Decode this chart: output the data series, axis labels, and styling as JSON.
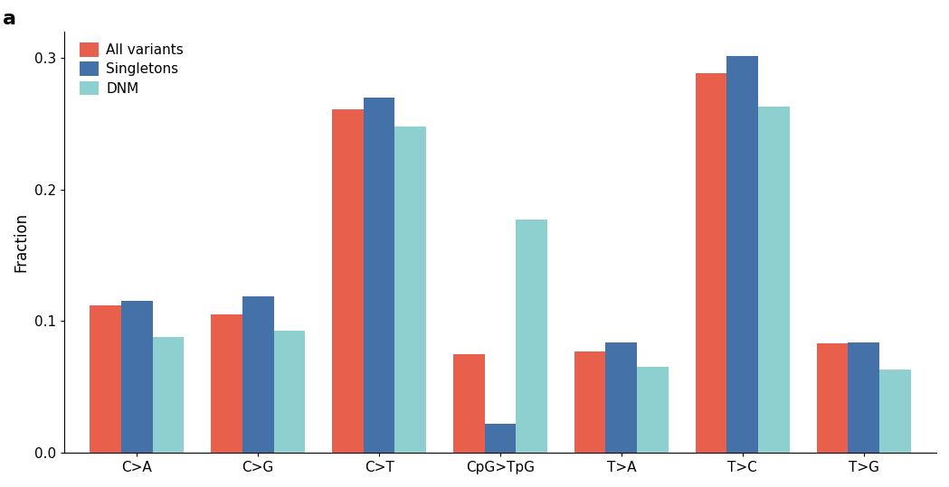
{
  "categories": [
    "C>A",
    "C>G",
    "C>T",
    "CpG>TpG",
    "T>A",
    "T>C",
    "T>G"
  ],
  "series": {
    "All variants": [
      0.112,
      0.105,
      0.261,
      0.075,
      0.077,
      0.288,
      0.083
    ],
    "Singletons": [
      0.115,
      0.119,
      0.27,
      0.022,
      0.084,
      0.301,
      0.084
    ],
    "DNM": [
      0.088,
      0.093,
      0.248,
      0.177,
      0.065,
      0.263,
      0.063
    ]
  },
  "colors": {
    "All variants": "#E8604C",
    "Singletons": "#4472A8",
    "DNM": "#8ECFCF"
  },
  "legend_labels": [
    "All variants",
    "Singletons",
    "DNM"
  ],
  "ylabel": "Fraction",
  "ylim": [
    0,
    0.32
  ],
  "yticks": [
    0.0,
    0.1,
    0.2,
    0.3
  ],
  "panel_label": "a",
  "bar_width": 0.26,
  "background_color": "#ffffff",
  "label_fontsize": 12,
  "tick_fontsize": 11,
  "legend_fontsize": 11
}
